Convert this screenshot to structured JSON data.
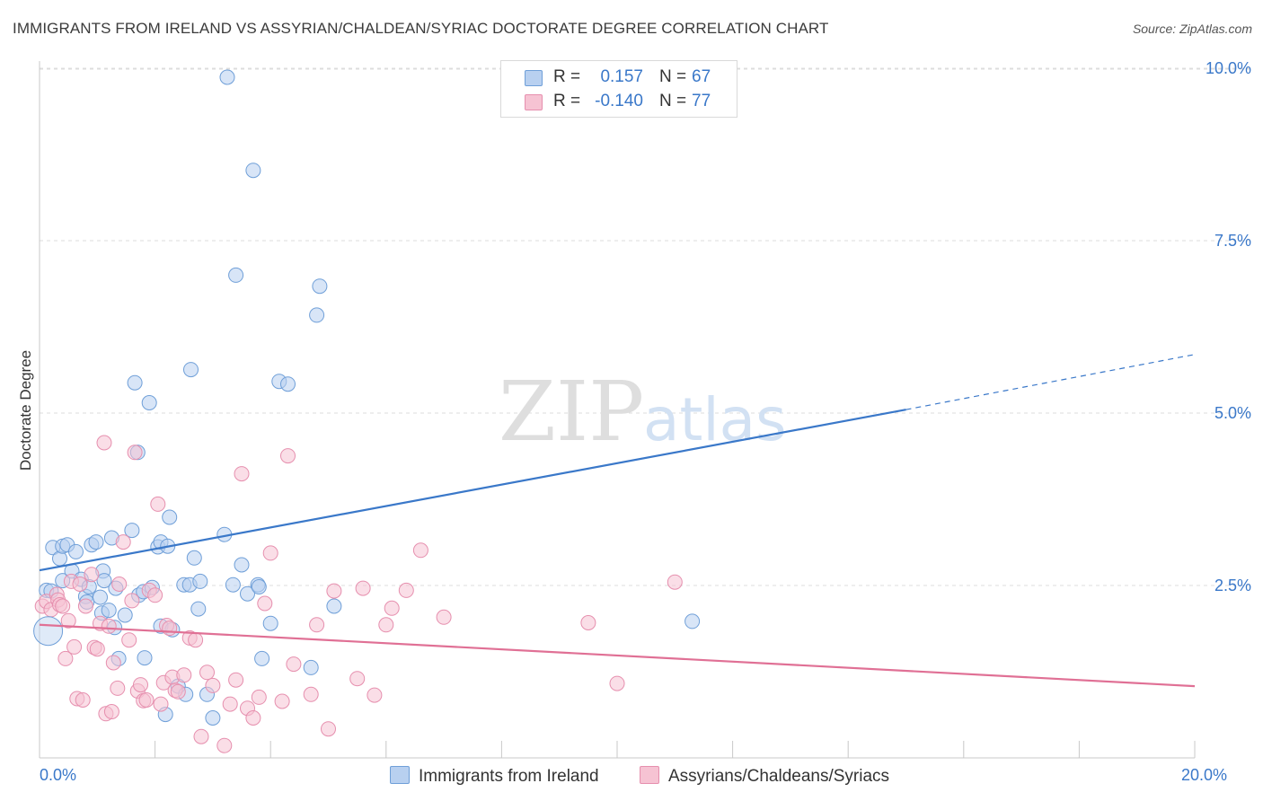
{
  "header": {
    "title": "IMMIGRANTS FROM IRELAND VS ASSYRIAN/CHALDEAN/SYRIAC DOCTORATE DEGREE CORRELATION CHART",
    "source": "Source: ZipAtlas.com"
  },
  "watermark": {
    "zip": "ZIP",
    "atlas": "atlas"
  },
  "legend_top": {
    "rows": [
      {
        "r_label": "R =",
        "r_value": "0.157",
        "n_label": "N =",
        "n_value": "67"
      },
      {
        "r_label": "R =",
        "r_value": "-0.140",
        "n_label": "N =",
        "n_value": "77"
      }
    ]
  },
  "legend_bottom": {
    "items": [
      {
        "label": "Immigrants from Ireland"
      },
      {
        "label": "Assyrians/Chaldeans/Syriacs"
      }
    ]
  },
  "colors": {
    "blue": "#3a78c9",
    "blue_fill": "#b8d0f0",
    "pink": "#e07095",
    "pink_fill": "#f6c3d3",
    "grid": "#dcdcdc",
    "tick_label": "#3a78c9"
  },
  "chart_data": {
    "type": "scatter",
    "title": "IMMIGRANTS FROM IRELAND VS ASSYRIAN/CHALDEAN/SYRIAC DOCTORATE DEGREE CORRELATION CHART",
    "xlabel": "",
    "ylabel": "Doctorate Degree",
    "xlim": [
      0,
      20
    ],
    "ylim": [
      0,
      10.25
    ],
    "x_tick_labels": [
      {
        "value": 0,
        "label": "0.0%"
      },
      {
        "value": 20,
        "label": "20.0%"
      }
    ],
    "x_minor_ticks": [
      0,
      2,
      4,
      6,
      8,
      10,
      12,
      14,
      16,
      18,
      20
    ],
    "y_ticks": [
      {
        "value": 2.5,
        "label": "2.5%"
      },
      {
        "value": 5.0,
        "label": "5.0%"
      },
      {
        "value": 7.5,
        "label": "7.5%"
      },
      {
        "value": 10.0,
        "label": "10.0%"
      }
    ],
    "grid": true,
    "legend_position": "bottom",
    "series": [
      {
        "name": "Immigrants from Ireland",
        "color": "#3a78c9",
        "points": [
          [
            0.12,
            2.43
          ],
          [
            0.2,
            2.42
          ],
          [
            0.23,
            3.05
          ],
          [
            0.35,
            2.89
          ],
          [
            0.4,
            3.07
          ],
          [
            0.4,
            2.57
          ],
          [
            0.48,
            3.09
          ],
          [
            0.56,
            2.71
          ],
          [
            0.63,
            2.99
          ],
          [
            0.72,
            2.59
          ],
          [
            0.8,
            2.34
          ],
          [
            0.82,
            2.26
          ],
          [
            0.86,
            2.48
          ],
          [
            0.9,
            3.09
          ],
          [
            0.98,
            3.13
          ],
          [
            1.05,
            2.33
          ],
          [
            1.08,
            2.1
          ],
          [
            1.1,
            2.71
          ],
          [
            1.12,
            2.57
          ],
          [
            1.2,
            2.14
          ],
          [
            1.25,
            3.19
          ],
          [
            1.3,
            1.89
          ],
          [
            1.32,
            2.46
          ],
          [
            1.37,
            1.44
          ],
          [
            1.48,
            2.07
          ],
          [
            1.6,
            3.3
          ],
          [
            1.65,
            5.44
          ],
          [
            1.7,
            4.43
          ],
          [
            1.72,
            2.36
          ],
          [
            1.8,
            2.41
          ],
          [
            1.82,
            1.45
          ],
          [
            1.9,
            5.15
          ],
          [
            1.95,
            2.47
          ],
          [
            2.05,
            3.06
          ],
          [
            2.1,
            1.91
          ],
          [
            2.1,
            3.13
          ],
          [
            2.18,
            0.63
          ],
          [
            2.22,
            3.07
          ],
          [
            2.25,
            3.49
          ],
          [
            2.3,
            1.86
          ],
          [
            2.4,
            1.04
          ],
          [
            2.5,
            2.51
          ],
          [
            2.53,
            0.92
          ],
          [
            2.6,
            2.51
          ],
          [
            2.62,
            5.63
          ],
          [
            2.68,
            2.9
          ],
          [
            2.75,
            2.16
          ],
          [
            2.78,
            2.56
          ],
          [
            2.9,
            0.92
          ],
          [
            3.0,
            0.58
          ],
          [
            3.2,
            3.24
          ],
          [
            3.25,
            9.87
          ],
          [
            3.35,
            2.51
          ],
          [
            3.4,
            7.0
          ],
          [
            3.5,
            2.8
          ],
          [
            3.6,
            2.38
          ],
          [
            3.7,
            8.52
          ],
          [
            3.78,
            2.51
          ],
          [
            3.8,
            2.48
          ],
          [
            3.85,
            1.44
          ],
          [
            4.0,
            1.95
          ],
          [
            4.15,
            5.46
          ],
          [
            4.3,
            5.42
          ],
          [
            4.7,
            1.31
          ],
          [
            4.8,
            6.42
          ],
          [
            4.85,
            6.84
          ],
          [
            5.1,
            2.2
          ],
          [
            11.3,
            1.98
          ]
        ]
      },
      {
        "name": "Assyrians/Chaldeans/Syriacs",
        "color": "#e07095",
        "points": [
          [
            0.05,
            2.2
          ],
          [
            0.12,
            2.27
          ],
          [
            0.2,
            2.15
          ],
          [
            0.3,
            2.37
          ],
          [
            0.32,
            2.29
          ],
          [
            0.35,
            2.22
          ],
          [
            0.4,
            2.2
          ],
          [
            0.45,
            1.44
          ],
          [
            0.5,
            1.99
          ],
          [
            0.55,
            2.56
          ],
          [
            0.6,
            1.61
          ],
          [
            0.65,
            0.86
          ],
          [
            0.7,
            2.52
          ],
          [
            0.75,
            0.84
          ],
          [
            0.8,
            2.2
          ],
          [
            0.9,
            2.66
          ],
          [
            0.95,
            1.6
          ],
          [
            1.0,
            1.58
          ],
          [
            1.05,
            1.95
          ],
          [
            1.12,
            4.57
          ],
          [
            1.15,
            0.64
          ],
          [
            1.2,
            1.91
          ],
          [
            1.25,
            0.67
          ],
          [
            1.28,
            1.38
          ],
          [
            1.35,
            1.01
          ],
          [
            1.38,
            2.52
          ],
          [
            1.45,
            3.13
          ],
          [
            1.55,
            1.71
          ],
          [
            1.6,
            2.28
          ],
          [
            1.65,
            4.43
          ],
          [
            1.7,
            0.97
          ],
          [
            1.75,
            1.06
          ],
          [
            1.8,
            0.83
          ],
          [
            1.85,
            0.84
          ],
          [
            1.9,
            2.43
          ],
          [
            2.0,
            2.36
          ],
          [
            2.05,
            3.68
          ],
          [
            2.1,
            0.78
          ],
          [
            2.15,
            1.09
          ],
          [
            2.2,
            1.92
          ],
          [
            2.25,
            1.88
          ],
          [
            2.3,
            1.17
          ],
          [
            2.35,
            0.98
          ],
          [
            2.4,
            0.96
          ],
          [
            2.5,
            1.2
          ],
          [
            2.6,
            1.74
          ],
          [
            2.7,
            1.71
          ],
          [
            2.8,
            0.31
          ],
          [
            2.9,
            1.24
          ],
          [
            3.0,
            1.05
          ],
          [
            3.2,
            0.18
          ],
          [
            3.3,
            0.78
          ],
          [
            3.4,
            1.13
          ],
          [
            3.5,
            4.12
          ],
          [
            3.6,
            0.72
          ],
          [
            3.7,
            0.58
          ],
          [
            3.8,
            0.88
          ],
          [
            3.9,
            2.24
          ],
          [
            4.0,
            2.97
          ],
          [
            4.2,
            0.82
          ],
          [
            4.3,
            4.38
          ],
          [
            4.4,
            1.36
          ],
          [
            4.7,
            0.92
          ],
          [
            4.8,
            1.93
          ],
          [
            5.0,
            0.42
          ],
          [
            5.1,
            2.42
          ],
          [
            5.5,
            1.15
          ],
          [
            5.6,
            2.46
          ],
          [
            5.8,
            0.91
          ],
          [
            6.0,
            1.93
          ],
          [
            6.1,
            2.17
          ],
          [
            6.35,
            2.43
          ],
          [
            6.6,
            3.01
          ],
          [
            7.0,
            2.04
          ],
          [
            9.5,
            1.96
          ],
          [
            10.0,
            1.08
          ],
          [
            11.0,
            2.55
          ]
        ]
      }
    ],
    "trend_lines": [
      {
        "series": "Immigrants from Ireland",
        "solid_from": [
          0,
          2.72
        ],
        "solid_to": [
          15.0,
          5.05
        ],
        "dashed_to": [
          20.0,
          5.85
        ]
      },
      {
        "series": "Assyrians/Chaldeans/Syriacs",
        "solid_from": [
          0,
          1.93
        ],
        "solid_to": [
          20.0,
          1.04
        ]
      }
    ]
  }
}
